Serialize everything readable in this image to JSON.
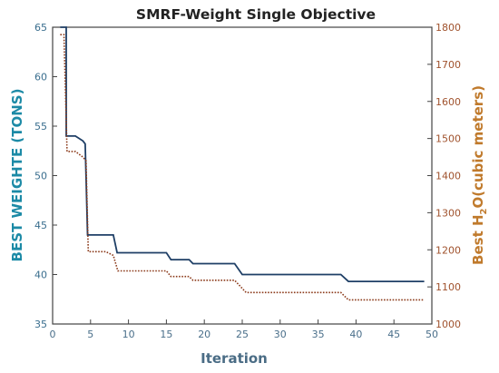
{
  "chart_data": {
    "type": "line",
    "title": "SMRF-Weight Single Objective",
    "xlabel": "Iteration",
    "ylabel_left": "BEST WEIGHTE (TONS)",
    "ylabel_right_main": "Best H",
    "ylabel_right_sub": "2",
    "ylabel_right_tail": "O(cubic meters)",
    "xlim": [
      0,
      50
    ],
    "ylim_left": [
      35,
      65
    ],
    "ylim_right": [
      1000,
      1800
    ],
    "xticks": [
      "0",
      "5",
      "10",
      "15",
      "20",
      "25",
      "30",
      "35",
      "40",
      "45",
      "50"
    ],
    "yticks_left": [
      "35",
      "40",
      "45",
      "50",
      "55",
      "60",
      "65"
    ],
    "yticks_right": [
      "1000",
      "1100",
      "1200",
      "1300",
      "1400",
      "1500",
      "1600",
      "1700",
      "1800"
    ],
    "grid": false,
    "colors": {
      "weight": "#1f3f66",
      "water": "#8b3a1a",
      "left_axis": "#3a6e8e",
      "right_axis": "#a0522d"
    },
    "series": [
      {
        "axis": "left",
        "style": "solid",
        "points": [
          [
            1,
            65
          ],
          [
            1.8,
            65
          ],
          [
            1.8,
            54
          ],
          [
            3,
            54
          ],
          [
            4,
            53.5
          ],
          [
            4.3,
            53.2
          ],
          [
            4.6,
            44
          ],
          [
            7,
            44
          ],
          [
            8,
            44
          ],
          [
            8.5,
            42.2
          ],
          [
            15,
            42.2
          ],
          [
            15.6,
            41.5
          ],
          [
            18,
            41.5
          ],
          [
            18.5,
            41.1
          ],
          [
            24,
            41.1
          ],
          [
            25,
            40
          ],
          [
            38,
            40
          ],
          [
            39,
            39.3
          ],
          [
            49,
            39.3
          ]
        ]
      },
      {
        "axis": "right",
        "style": "dotted",
        "points": [
          [
            1,
            1780
          ],
          [
            1.5,
            1780
          ],
          [
            1.9,
            1465
          ],
          [
            3,
            1465
          ],
          [
            4,
            1450
          ],
          [
            4.4,
            1440
          ],
          [
            4.7,
            1195
          ],
          [
            7,
            1195
          ],
          [
            8,
            1185
          ],
          [
            8.6,
            1143
          ],
          [
            15,
            1143
          ],
          [
            15.6,
            1128
          ],
          [
            18,
            1128
          ],
          [
            18.5,
            1118
          ],
          [
            24,
            1118
          ],
          [
            25.5,
            1085
          ],
          [
            38,
            1085
          ],
          [
            39,
            1065
          ],
          [
            49,
            1065
          ]
        ]
      }
    ]
  }
}
